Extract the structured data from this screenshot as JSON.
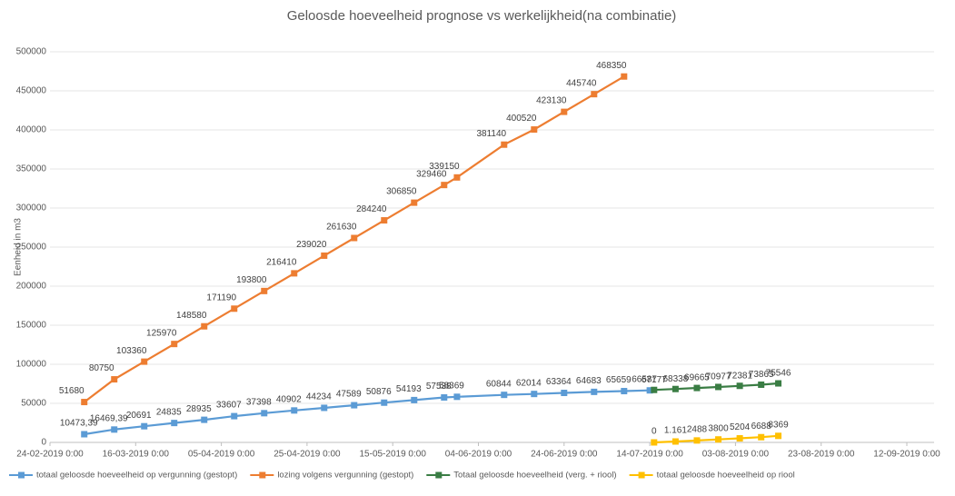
{
  "chart_data": {
    "type": "line",
    "title": "Geloosde hoeveelheid prognose vs werkelijkheid(na combinatie)",
    "y_label": "Eenheid in m3",
    "ylim": [
      0,
      500000
    ],
    "yticks": [
      0,
      50000,
      100000,
      150000,
      200000,
      250000,
      300000,
      350000,
      400000,
      450000,
      500000
    ],
    "xlim": [
      "2019-02-24",
      "2019-09-12"
    ],
    "xticks": [
      {
        "value": "2019-02-24",
        "label": "24-02-2019 0:00"
      },
      {
        "value": "2019-03-16",
        "label": "16-03-2019 0:00"
      },
      {
        "value": "2019-04-05",
        "label": "05-04-2019 0:00"
      },
      {
        "value": "2019-04-25",
        "label": "25-04-2019 0:00"
      },
      {
        "value": "2019-05-15",
        "label": "15-05-2019 0:00"
      },
      {
        "value": "2019-06-04",
        "label": "04-06-2019 0:00"
      },
      {
        "value": "2019-06-24",
        "label": "24-06-2019 0:00"
      },
      {
        "value": "2019-07-14",
        "label": "14-07-2019 0:00"
      },
      {
        "value": "2019-08-03",
        "label": "03-08-2019 0:00"
      },
      {
        "value": "2019-08-23",
        "label": "23-08-2019 0:00"
      },
      {
        "value": "2019-09-12",
        "label": "12-09-2019 0:00"
      }
    ],
    "grid": true,
    "legend": "bottom",
    "series": [
      {
        "name": "totaal geloosde hoeveelheid op vergunning (gestopt)",
        "color": "#5b9bd5",
        "x": [
          "2019-03-04",
          "2019-03-11",
          "2019-03-18",
          "2019-03-25",
          "2019-04-01",
          "2019-04-08",
          "2019-04-15",
          "2019-04-22",
          "2019-04-29",
          "2019-05-06",
          "2019-05-13",
          "2019-05-20",
          "2019-05-27",
          "2019-05-30",
          "2019-06-10",
          "2019-06-17",
          "2019-06-24",
          "2019-07-01",
          "2019-07-08",
          "2019-07-14"
        ],
        "values": [
          10473.39,
          16469.39,
          20691,
          24835,
          28935,
          33607,
          37398,
          40902,
          44234,
          47589,
          50876,
          54193,
          57538,
          58369,
          60844,
          62014,
          63364,
          64683,
          65659,
          66587
        ],
        "value_labels": [
          "10473,39",
          "16469,39",
          "20691",
          "24835",
          "28935",
          "33607",
          "37398",
          "40902",
          "44234",
          "47589",
          "50876",
          "54193",
          "57538",
          "58369",
          "60844",
          "62014",
          "63364",
          "64683",
          "65659",
          "66587"
        ]
      },
      {
        "name": "lozing volgens vergunning (gestopt)",
        "color": "#ed7d31",
        "x": [
          "2019-03-04",
          "2019-03-11",
          "2019-03-18",
          "2019-03-25",
          "2019-04-01",
          "2019-04-08",
          "2019-04-15",
          "2019-04-22",
          "2019-04-29",
          "2019-05-06",
          "2019-05-13",
          "2019-05-20",
          "2019-05-27",
          "2019-05-30",
          "2019-06-10",
          "2019-06-17",
          "2019-06-24",
          "2019-07-01",
          "2019-07-08"
        ],
        "values": [
          51680,
          80750,
          103360,
          125970,
          148580,
          171190,
          193800,
          216410,
          239020,
          261630,
          284240,
          306850,
          329460,
          339150,
          381140,
          400520,
          423130,
          445740,
          468350
        ]
      },
      {
        "name": "Totaal geloosde hoeveelheid (verg. + riool)",
        "color": "#3a7d44",
        "x": [
          "2019-07-15",
          "2019-07-20",
          "2019-07-25",
          "2019-07-30",
          "2019-08-04",
          "2019-08-09",
          "2019-08-13"
        ],
        "values": [
          67177,
          68338,
          69665,
          70977,
          72381,
          73865,
          75546
        ]
      },
      {
        "name": "totaal geloosde hoeveelheid op riool",
        "color": "#ffc000",
        "x": [
          "2019-07-15",
          "2019-07-20",
          "2019-07-25",
          "2019-07-30",
          "2019-08-04",
          "2019-08-09",
          "2019-08-13"
        ],
        "values": [
          0,
          1161,
          2488,
          3800,
          5204,
          6688,
          8369
        ],
        "value_labels": [
          "0",
          "1.161",
          "2488",
          "3800",
          "5204",
          "6688",
          "8369"
        ]
      }
    ]
  }
}
